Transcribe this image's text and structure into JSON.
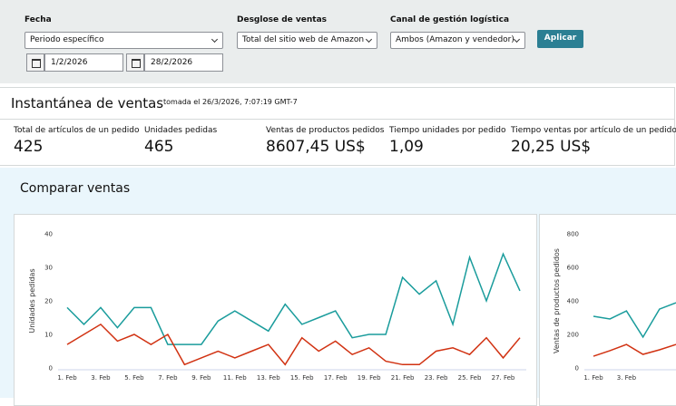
{
  "filters": {
    "date": {
      "label": "Fecha",
      "select": "Periodo específico",
      "start": "1/2/2026",
      "end": "28/2/2026"
    },
    "breakdown": {
      "label": "Desglose de ventas",
      "select": "Total del sitio web de Amazon"
    },
    "channel": {
      "label": "Canal de gestión logística",
      "select": "Ambos (Amazon y vendedor)"
    },
    "apply": "Aplicar"
  },
  "snapshot": {
    "title": "Instantánea de ventas",
    "taken": "tomada el 26/3/2026, 7:07:19 GMT-7",
    "metrics": [
      {
        "label": "Total de artículos de un pedido",
        "value": "425"
      },
      {
        "label": "Unidades pedidas",
        "value": "465"
      },
      {
        "label": "Ventas de productos pedidos",
        "value": "8607,45 US$"
      },
      {
        "label": "Tiempo unidades por pedido",
        "value": "1,09"
      },
      {
        "label": "Tiempo ventas por artículo de un pedido",
        "value": "20,25 US$"
      }
    ]
  },
  "compare": {
    "title": "Comparar ventas"
  },
  "chart_data": [
    {
      "type": "line",
      "y_label": "Unidades pedidas",
      "ylim": [
        0,
        40
      ],
      "yticks": [
        0,
        10,
        20,
        30,
        40
      ],
      "grid": false,
      "categories": [
        "1. Feb",
        null,
        "3. Feb",
        null,
        "5. Feb",
        null,
        "7. Feb",
        null,
        "9. Feb",
        null,
        "11. Feb",
        null,
        "13. Feb",
        null,
        "15. Feb",
        null,
        "17. Feb",
        null,
        "19. Feb",
        null,
        "21. Feb",
        null,
        "23. Feb",
        null,
        "25. Feb",
        null,
        "27. Feb",
        null
      ],
      "series": [
        {
          "color": "#1a9c9c",
          "values": [
            18,
            13,
            18,
            12,
            18,
            18,
            7,
            7,
            7,
            14,
            17,
            14,
            11,
            19,
            13,
            15,
            17,
            9,
            10,
            10,
            27,
            22,
            26,
            13,
            33,
            20,
            34,
            23
          ]
        },
        {
          "color": "#d13212",
          "values": [
            7,
            10,
            13,
            8,
            10,
            7,
            10,
            1,
            3,
            5,
            3,
            5,
            7,
            1,
            9,
            5,
            8,
            4,
            6,
            2,
            1,
            1,
            5,
            6,
            4,
            9,
            3,
            9
          ]
        }
      ]
    },
    {
      "type": "line",
      "y_label": "Ventas de productos pedidos",
      "ylim": [
        0,
        800
      ],
      "yticks": [
        0,
        200,
        400,
        600,
        800
      ],
      "grid": false,
      "categories": [
        "1. Feb",
        null,
        "3. Feb",
        null,
        null,
        null
      ],
      "series": [
        {
          "color": "#1a9c9c",
          "values": [
            308,
            292,
            340,
            184,
            351,
            389
          ]
        },
        {
          "color": "#d13212",
          "values": [
            70,
            103,
            140,
            81,
            108,
            140
          ]
        }
      ]
    }
  ]
}
